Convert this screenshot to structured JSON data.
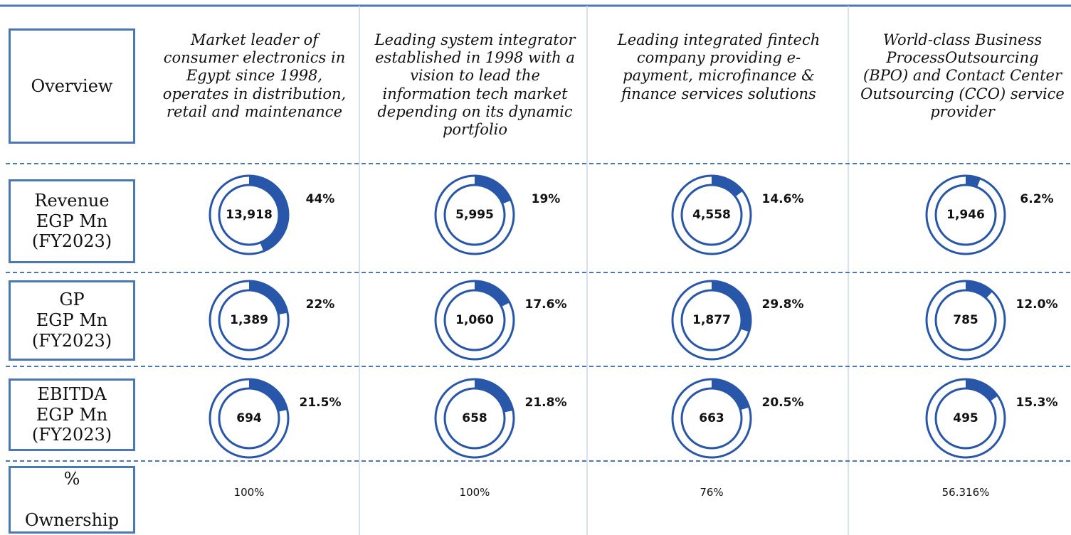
{
  "row_labels": {
    "overview": "Overview",
    "revenue": "Revenue\nEGP Mn\n(FY2023)",
    "gp": "GP\nEGP Mn\n(FY2023)",
    "ebitda": "EBITDA\nEGP Mn\n(FY2023)",
    "ownership": "%\n\nOwnership"
  },
  "companies": [
    {
      "overview": "Market leader of\nconsumer  electronics in\nEgypt since  1998,\noperates in  distribution,\nretail and  maintenance",
      "revenue": {
        "value": "13,918",
        "share": 44,
        "share_label": "44%"
      },
      "gp": {
        "value": "1,389",
        "share": 22,
        "share_label": "22%"
      },
      "ebitda": {
        "value": "694",
        "share": 21.5,
        "share_label": "21.5%"
      },
      "ownership": "100%"
    },
    {
      "overview": "Leading system integrator\nestablished in 1998 with a\nvision to lead the\ninformation tech market\ndepending on its dynamic\nportfolio",
      "revenue": {
        "value": "5,995",
        "share": 19,
        "share_label": "19%"
      },
      "gp": {
        "value": "1,060",
        "share": 17.6,
        "share_label": "17.6%"
      },
      "ebitda": {
        "value": "658",
        "share": 21.8,
        "share_label": "21.8%"
      },
      "ownership": "100%"
    },
    {
      "overview": "Leading integrated fintech\ncompany providing e-\npayment, microfinance &\nfinance services solutions",
      "revenue": {
        "value": "4,558",
        "share": 14.6,
        "share_label": "14.6%"
      },
      "gp": {
        "value": "1,877",
        "share": 29.8,
        "share_label": "29.8%"
      },
      "ebitda": {
        "value": "663",
        "share": 20.5,
        "share_label": "20.5%"
      },
      "ownership": "76%"
    },
    {
      "overview": "World-class Business\nProcessOutsourcing\n(BPO) and Contact Center\nOutsourcing (CCO) service\nprovider",
      "revenue": {
        "value": "1,946",
        "share": 6.2,
        "share_label": "6.2%"
      },
      "gp": {
        "value": "785",
        "share": 12.0,
        "share_label": "12.0%"
      },
      "ebitda": {
        "value": "495",
        "share": 15.3,
        "share_label": "15.3%"
      },
      "ownership": "56.316%"
    }
  ]
}
